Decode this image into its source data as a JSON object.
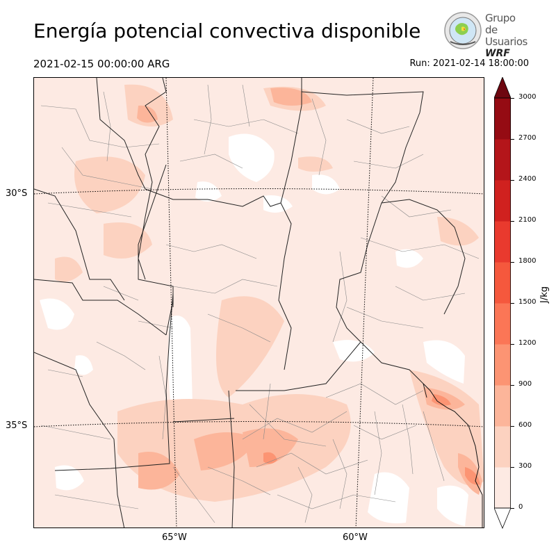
{
  "title": "Energía potencial convectiva disponible",
  "valid_time": "2021-02-15 00:00:00 ARG",
  "run_time": "Run: 2021-02-14 18:00:00",
  "logo": {
    "line1": "Grupo de",
    "line2": "Usuarios",
    "line3": "WRF",
    "icon": "wrf-globe-logo-icon"
  },
  "map": {
    "lat_labels": [
      "30°S",
      "35°S"
    ],
    "lon_labels": [
      "65°W",
      "60°W"
    ],
    "colors": {
      "border": "#000000",
      "admin": "#888888",
      "graticule": "#000000"
    }
  },
  "colorbar": {
    "unit": "J/kg",
    "ticks": [
      "0",
      "300",
      "600",
      "900",
      "1200",
      "1500",
      "1800",
      "2100",
      "2400",
      "2700",
      "3000"
    ],
    "colors": [
      "#fdeae3",
      "#fcd2c0",
      "#fcb59a",
      "#fc9473",
      "#fb7656",
      "#f5583d",
      "#e93a2e",
      "#d0211f",
      "#b4151a",
      "#950b13",
      "#6e0710"
    ]
  }
}
